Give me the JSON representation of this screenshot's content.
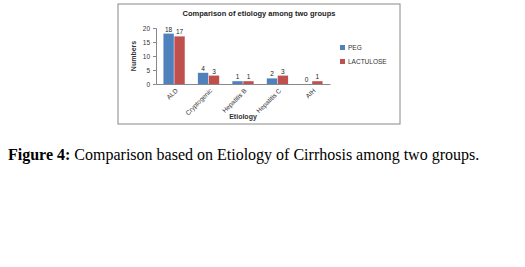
{
  "chart_data": {
    "type": "bar",
    "title": "Comparison of  etiology among two groups",
    "x_label": "Etiology",
    "y_label": "Numbers",
    "categories": [
      "ALD",
      "Cryptogenic",
      "Hepatitis B",
      "Hepatitis C",
      "AIH"
    ],
    "series": [
      {
        "name": "PEG",
        "color": "#4f81bd",
        "values": [
          18,
          4,
          1,
          2,
          0
        ]
      },
      {
        "name": "LACTULOSE",
        "color": "#c0504d",
        "values": [
          17,
          3,
          1,
          3,
          1
        ]
      }
    ],
    "ylim": [
      0,
      20
    ],
    "yticks": [
      0,
      5,
      10,
      15,
      20
    ],
    "grid": false,
    "data_labels": true,
    "legend": "right"
  },
  "caption": {
    "label": "Figure 4:",
    "text": "Comparison based on Etiology of Cirrhosis among two groups."
  }
}
